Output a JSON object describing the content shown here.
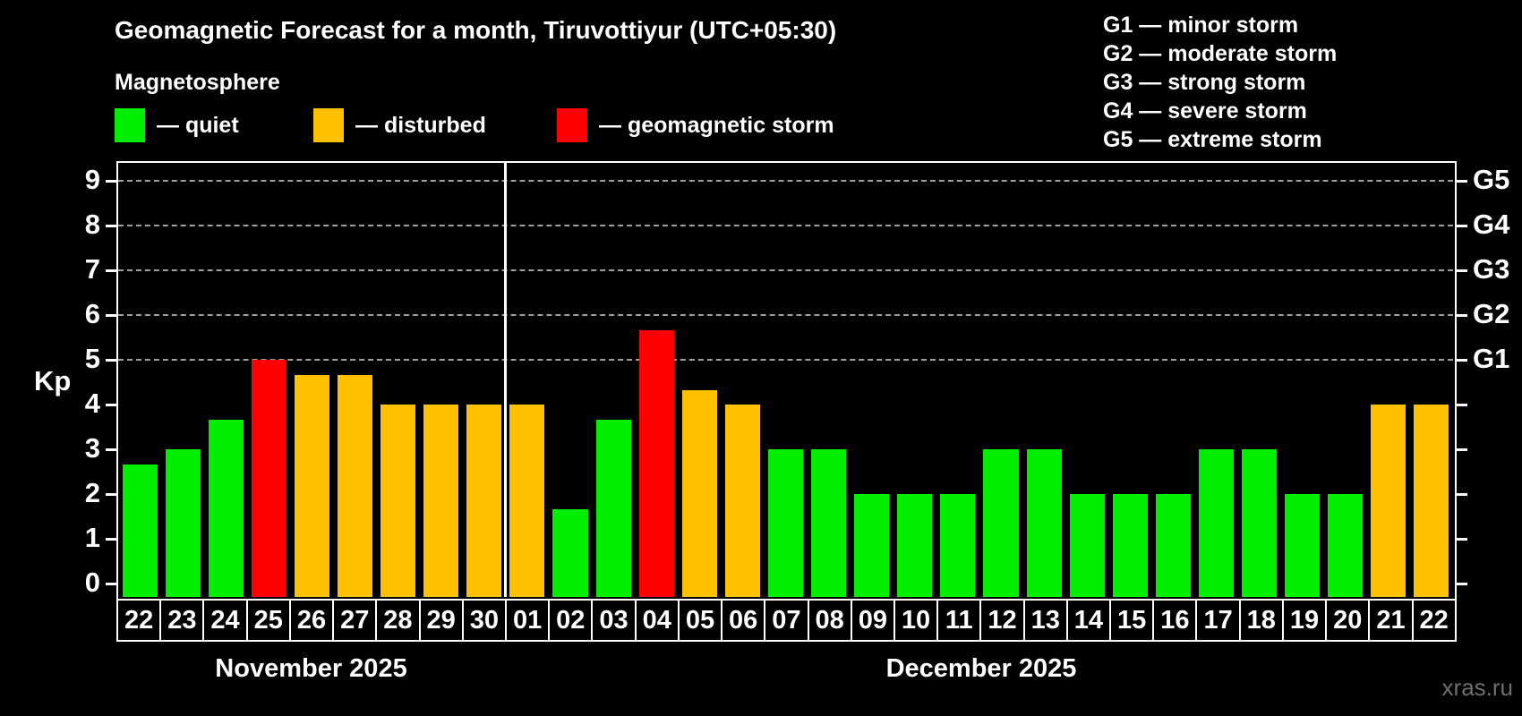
{
  "title": "Geomagnetic Forecast for a month, Tiruvottiyur (UTC+05:30)",
  "subtitle": "Magnetosphere",
  "legend": {
    "quiet": "— quiet",
    "disturbed": "— disturbed",
    "storm": "— geomagnetic storm"
  },
  "g_scale": [
    "G1 — minor storm",
    "G2 — moderate storm",
    "G3 — strong storm",
    "G4 — severe storm",
    "G5 — extreme storm"
  ],
  "y_axis": {
    "label": "Kp",
    "ticks": [
      0,
      1,
      2,
      3,
      4,
      5,
      6,
      7,
      8,
      9
    ]
  },
  "right_axis": {
    "levels": [
      5,
      6,
      7,
      8,
      9
    ],
    "labels": [
      "G1",
      "G2",
      "G3",
      "G4",
      "G5"
    ]
  },
  "months": [
    {
      "label": "November 2025"
    },
    {
      "label": "December 2025"
    }
  ],
  "watermark": "xras.ru",
  "colors": {
    "quiet": "#00ee00",
    "disturbed": "#ffc000",
    "storm": "#ff0000",
    "background": "#000000",
    "grid": "#9f9f9f",
    "text": "#ffffff",
    "watermark": "#6f6f6f"
  },
  "chart_data": {
    "type": "bar",
    "title": "Geomagnetic Forecast for a month, Tiruvottiyur (UTC+05:30)",
    "xlabel": "",
    "ylabel": "Kp",
    "ylim": [
      0,
      9
    ],
    "grid": "dashed horizontal at Kp 5-9 only",
    "legend_position": "top-left (status colors), top-right (G storm scale)",
    "gridline_levels": [
      5,
      6,
      7,
      8,
      9
    ],
    "month_separator_after_index": 8,
    "points": [
      {
        "month": "November 2025",
        "day": "22",
        "kp": 2.67,
        "status": "quiet"
      },
      {
        "month": "November 2025",
        "day": "23",
        "kp": 3.0,
        "status": "quiet"
      },
      {
        "month": "November 2025",
        "day": "24",
        "kp": 3.67,
        "status": "quiet"
      },
      {
        "month": "November 2025",
        "day": "25",
        "kp": 5.0,
        "status": "storm"
      },
      {
        "month": "November 2025",
        "day": "26",
        "kp": 4.67,
        "status": "disturbed"
      },
      {
        "month": "November 2025",
        "day": "27",
        "kp": 4.67,
        "status": "disturbed"
      },
      {
        "month": "November 2025",
        "day": "28",
        "kp": 4.0,
        "status": "disturbed"
      },
      {
        "month": "November 2025",
        "day": "29",
        "kp": 4.0,
        "status": "disturbed"
      },
      {
        "month": "November 2025",
        "day": "30",
        "kp": 4.0,
        "status": "disturbed"
      },
      {
        "month": "December 2025",
        "day": "01",
        "kp": 4.0,
        "status": "disturbed"
      },
      {
        "month": "December 2025",
        "day": "02",
        "kp": 1.67,
        "status": "quiet"
      },
      {
        "month": "December 2025",
        "day": "03",
        "kp": 3.67,
        "status": "quiet"
      },
      {
        "month": "December 2025",
        "day": "04",
        "kp": 5.67,
        "status": "storm"
      },
      {
        "month": "December 2025",
        "day": "05",
        "kp": 4.33,
        "status": "disturbed"
      },
      {
        "month": "December 2025",
        "day": "06",
        "kp": 4.0,
        "status": "disturbed"
      },
      {
        "month": "December 2025",
        "day": "07",
        "kp": 3.0,
        "status": "quiet"
      },
      {
        "month": "December 2025",
        "day": "08",
        "kp": 3.0,
        "status": "quiet"
      },
      {
        "month": "December 2025",
        "day": "09",
        "kp": 2.0,
        "status": "quiet"
      },
      {
        "month": "December 2025",
        "day": "10",
        "kp": 2.0,
        "status": "quiet"
      },
      {
        "month": "December 2025",
        "day": "11",
        "kp": 2.0,
        "status": "quiet"
      },
      {
        "month": "December 2025",
        "day": "12",
        "kp": 3.0,
        "status": "quiet"
      },
      {
        "month": "December 2025",
        "day": "13",
        "kp": 3.0,
        "status": "quiet"
      },
      {
        "month": "December 2025",
        "day": "14",
        "kp": 2.0,
        "status": "quiet"
      },
      {
        "month": "December 2025",
        "day": "15",
        "kp": 2.0,
        "status": "quiet"
      },
      {
        "month": "December 2025",
        "day": "16",
        "kp": 2.0,
        "status": "quiet"
      },
      {
        "month": "December 2025",
        "day": "17",
        "kp": 3.0,
        "status": "quiet"
      },
      {
        "month": "December 2025",
        "day": "18",
        "kp": 3.0,
        "status": "quiet"
      },
      {
        "month": "December 2025",
        "day": "19",
        "kp": 2.0,
        "status": "quiet"
      },
      {
        "month": "December 2025",
        "day": "20",
        "kp": 2.0,
        "status": "quiet"
      },
      {
        "month": "December 2025",
        "day": "21",
        "kp": 4.0,
        "status": "disturbed"
      },
      {
        "month": "December 2025",
        "day": "22",
        "kp": 4.0,
        "status": "disturbed"
      }
    ]
  }
}
